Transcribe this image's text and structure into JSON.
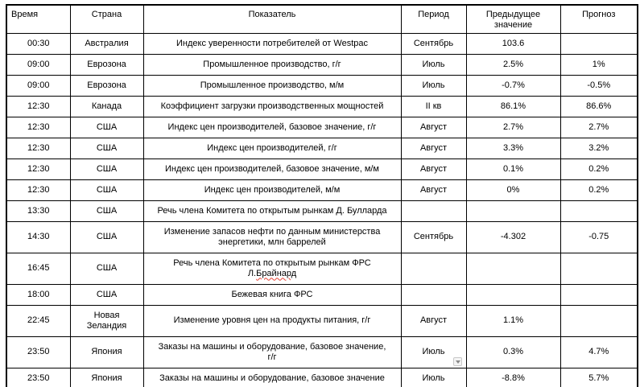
{
  "colors": {
    "border": "#000000",
    "text": "#000000",
    "spellcheck": "#e74133",
    "scroll_marker_bg": "#f4f4f4",
    "scroll_marker_border": "#c8c8c8",
    "scroll_marker_arrow": "#8a8a8a"
  },
  "table": {
    "columns": [
      {
        "key": "time",
        "label": "Время"
      },
      {
        "key": "country",
        "label": "Страна"
      },
      {
        "key": "indicator",
        "label": "Показатель"
      },
      {
        "key": "period",
        "label": "Период"
      },
      {
        "key": "previous",
        "label": "Предыдущее\nзначение"
      },
      {
        "key": "forecast",
        "label": "Прогноз"
      }
    ],
    "rows": [
      {
        "time": "00:30",
        "country": "Австралия",
        "indicator": "Индекс уверенности потребителей от Westpac",
        "period": "Сентябрь",
        "previous": "103.6",
        "forecast": ""
      },
      {
        "time": "09:00",
        "country": "Еврозона",
        "indicator": "Промышленное производство, г/г",
        "period": "Июль",
        "previous": "2.5%",
        "forecast": "1%"
      },
      {
        "time": "09:00",
        "country": "Еврозона",
        "indicator": "Промышленное производство, м/м",
        "period": "Июль",
        "previous": "-0.7%",
        "forecast": "-0.5%"
      },
      {
        "time": "12:30",
        "country": "Канада",
        "indicator": "Коэффициент загрузки производственных мощностей",
        "period": "II кв",
        "previous": "86.1%",
        "forecast": "86.6%"
      },
      {
        "time": "12:30",
        "country": "США",
        "indicator": "Индекс цен производителей, базовое значение, г/г",
        "period": "Август",
        "previous": "2.7%",
        "forecast": "2.7%"
      },
      {
        "time": "12:30",
        "country": "США",
        "indicator": "Индекс цен производителей, г/г",
        "period": "Август",
        "previous": "3.3%",
        "forecast": "3.2%"
      },
      {
        "time": "12:30",
        "country": "США",
        "indicator": "Индекс цен производителей, базовое значение, м/м",
        "period": "Август",
        "previous": "0.1%",
        "forecast": "0.2%"
      },
      {
        "time": "12:30",
        "country": "США",
        "indicator": "Индекс цен производителей, м/м",
        "period": "Август",
        "previous": "0%",
        "forecast": "0.2%"
      },
      {
        "time": "13:30",
        "country": "США",
        "indicator": "Речь члена Комитета по открытым рынкам Д. Булларда",
        "period": "",
        "previous": "",
        "forecast": ""
      },
      {
        "time": "14:30",
        "country": "США",
        "indicator": "Изменение запасов нефти по данным министерства\nэнергетики, млн баррелей",
        "period": "Сентябрь",
        "previous": "-4.302",
        "forecast": "-0.75"
      },
      {
        "time": "16:45",
        "country": "США",
        "indicator": "Речь члена Комитета по открытым рынкам ФРС\nЛ.Брайнард",
        "period": "",
        "previous": "",
        "forecast": "",
        "spell_error_word": "Брайнард"
      },
      {
        "time": "18:00",
        "country": "США",
        "indicator": "Бежевая книга ФРС",
        "period": "",
        "previous": "",
        "forecast": ""
      },
      {
        "time": "22:45",
        "country": "Новая Зеландия",
        "indicator": "Изменение уровня цен на продукты питания, г/г",
        "period": "Август",
        "previous": "1.1%",
        "forecast": ""
      },
      {
        "time": "23:50",
        "country": "Япония",
        "indicator": "Заказы на машины и оборудование, базовое значение,\nг/г",
        "period": "Июль",
        "previous": "0.3%",
        "forecast": "4.7%"
      },
      {
        "time": "23:50",
        "country": "Япония",
        "indicator": "Заказы на машины и оборудование, базовое значение",
        "period": "Июль",
        "previous": "-8.8%",
        "forecast": "5.7%"
      }
    ]
  },
  "widgets": {
    "scroll_marker_icon": "chevron-down"
  }
}
